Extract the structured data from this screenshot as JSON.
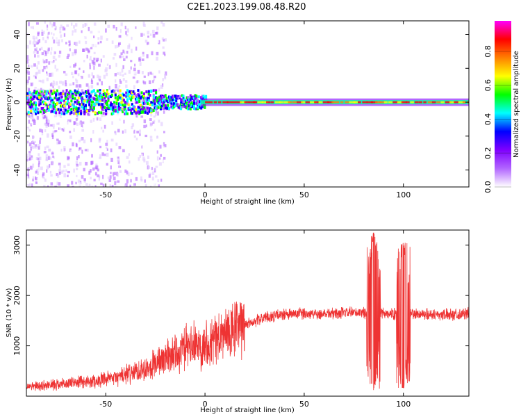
{
  "title": "C2E1.2023.199.08.48.R20",
  "chart_data": [
    {
      "type": "heatmap",
      "xlabel": "Height of straight line (km)",
      "ylabel": "Frequency (Hz)",
      "xlim": [
        -90,
        133
      ],
      "ylim": [
        -50,
        48
      ],
      "xticks": [
        -50,
        0,
        50,
        100
      ],
      "yticks": [
        -40,
        -20,
        0,
        20,
        40
      ],
      "colorbar": {
        "label": "Normalized spectral amplitude",
        "range": [
          0,
          0.98
        ],
        "ticks": [
          0.0,
          0.2,
          0.4,
          0.6,
          0.8
        ],
        "tick_labels": [
          "0.0",
          "0.2",
          "0.4",
          "0.6",
          "0.8"
        ],
        "colormap": [
          "#ffffff",
          "#e0c8ff",
          "#b266ff",
          "#8000ff",
          "#0000ff",
          "#00ffff",
          "#00ff00",
          "#ffff00",
          "#ff8000",
          "#ff0000",
          "#ff00ff"
        ]
      },
      "signal": {
        "center_freq_hz": 0,
        "noise_region_km": [
          -90,
          -25
        ],
        "narrow_band_from_km": 0
      }
    },
    {
      "type": "line",
      "xlabel": "Height of straight line (km)",
      "ylabel": "SNR (10 * v/v)",
      "xlim": [
        -90,
        133
      ],
      "ylim": [
        0,
        3300
      ],
      "xticks": [
        -50,
        0,
        50,
        100
      ],
      "yticks": [
        1000,
        2000,
        3000
      ],
      "line_color": "#ee3333",
      "trend": [
        {
          "x": -90,
          "y": 180
        },
        {
          "x": -70,
          "y": 250
        },
        {
          "x": -50,
          "y": 320
        },
        {
          "x": -40,
          "y": 420
        },
        {
          "x": -30,
          "y": 560
        },
        {
          "x": -20,
          "y": 760
        },
        {
          "x": -10,
          "y": 950
        },
        {
          "x": 0,
          "y": 1050
        },
        {
          "x": 10,
          "y": 1220
        },
        {
          "x": 20,
          "y": 1420
        },
        {
          "x": 30,
          "y": 1560
        },
        {
          "x": 40,
          "y": 1620
        },
        {
          "x": 50,
          "y": 1640
        },
        {
          "x": 60,
          "y": 1640
        },
        {
          "x": 70,
          "y": 1650
        },
        {
          "x": 80,
          "y": 1660
        },
        {
          "x": 90,
          "y": 1640
        },
        {
          "x": 100,
          "y": 1630
        },
        {
          "x": 110,
          "y": 1630
        },
        {
          "x": 120,
          "y": 1620
        },
        {
          "x": 133,
          "y": 1640
        }
      ],
      "features": [
        {
          "x": 85,
          "y_min": 120,
          "y_max": 3250
        },
        {
          "x": 100,
          "y_min": 150,
          "y_max": 3050
        }
      ]
    }
  ]
}
